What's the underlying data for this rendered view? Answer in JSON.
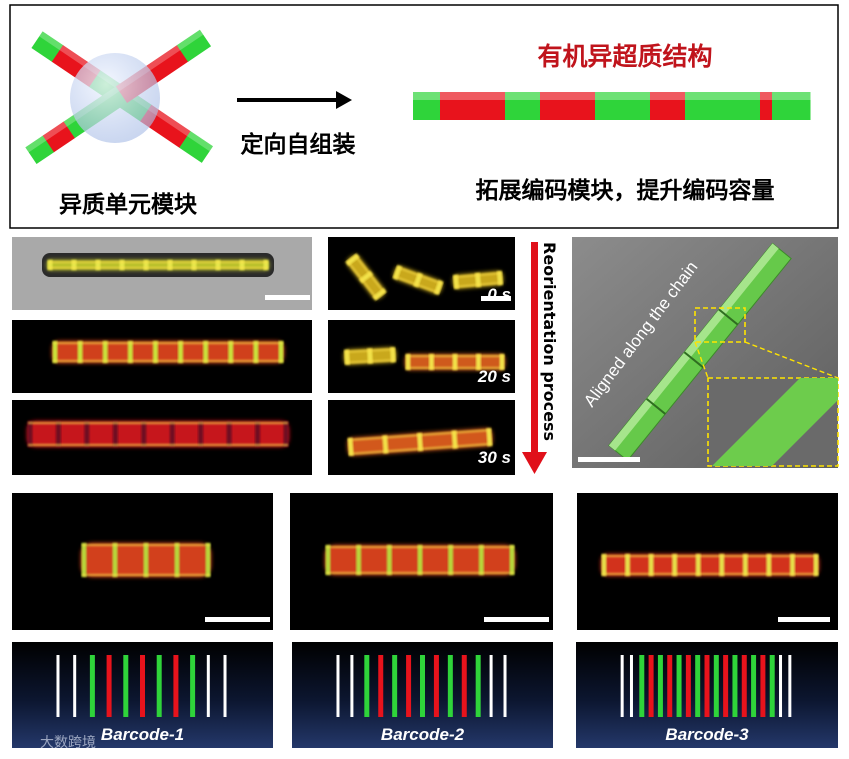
{
  "top_panel": {
    "left_label": "异质单元模块",
    "arrow_label": "定向自组装",
    "right_title": "有机异超质结构",
    "right_caption": "拓展编码模块，提升编码容量"
  },
  "reorientation": {
    "time_labels": [
      "0 s",
      "20 s",
      "30 s"
    ],
    "arrow_label": "Reorientation process"
  },
  "sem": {
    "annotation": "Aligned along the chain"
  },
  "barcodes": [
    "Barcode-1",
    "Barcode-2",
    "Barcode-3"
  ],
  "watermark": "大数跨境"
}
